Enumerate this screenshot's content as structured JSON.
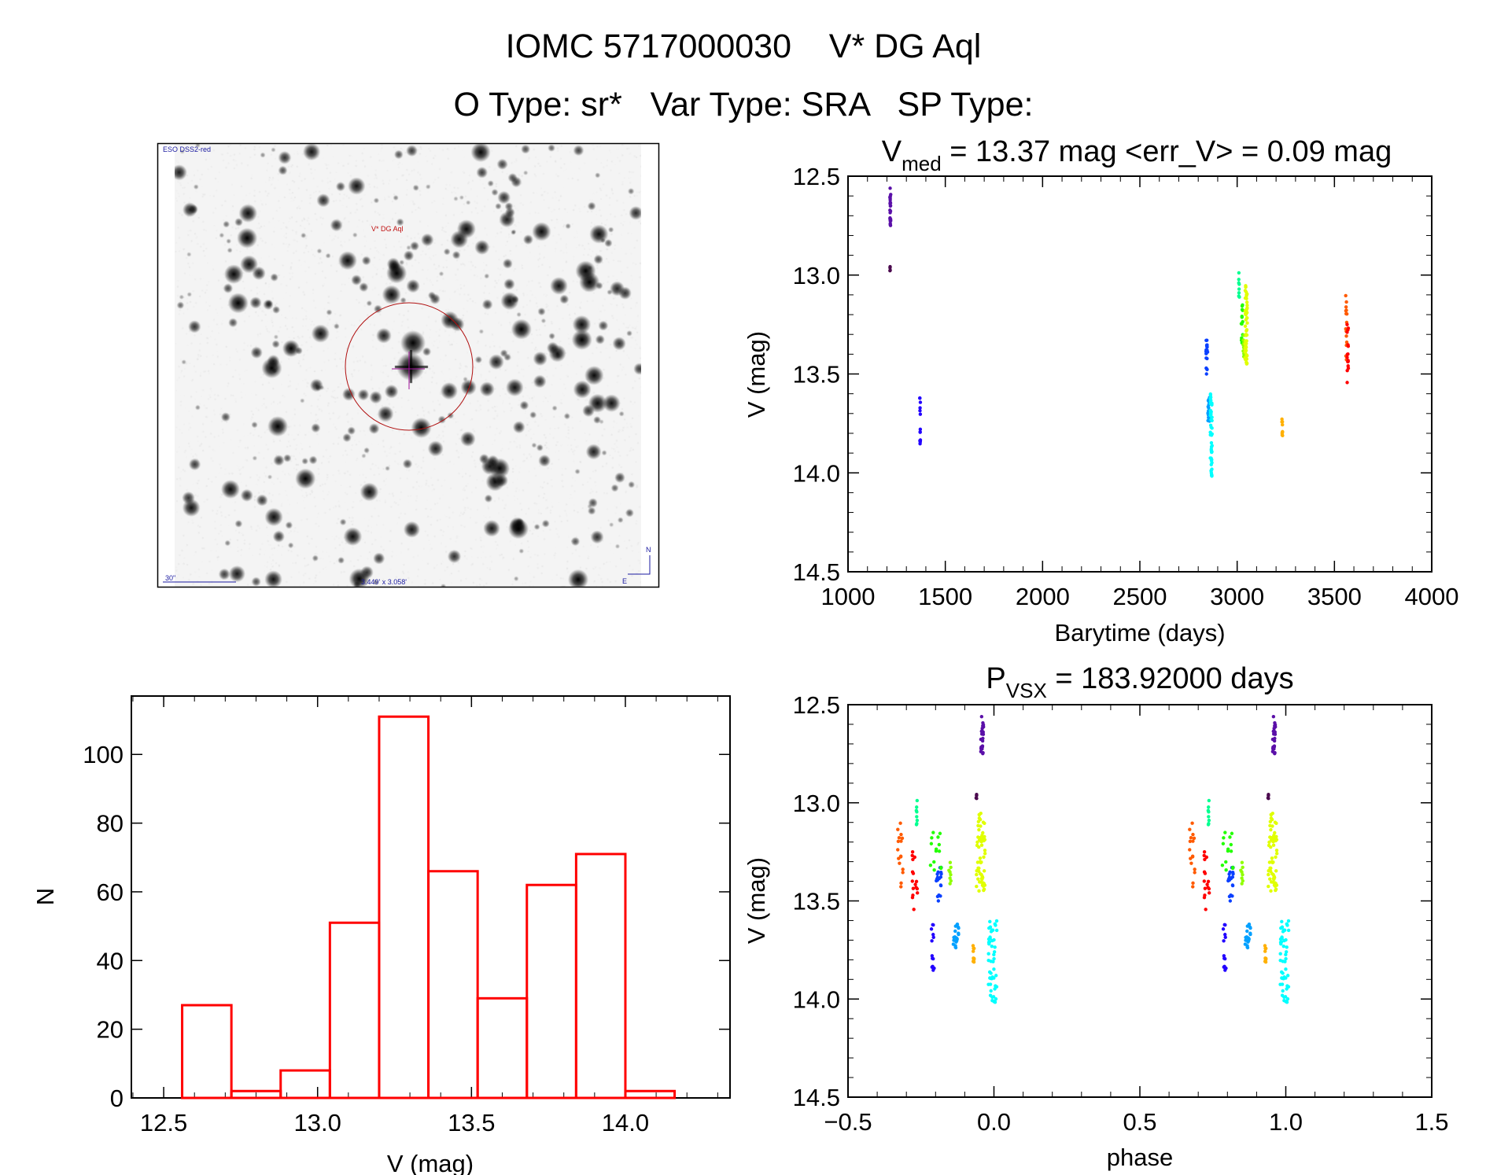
{
  "header": {
    "title_line1": "IOMC 5717000030    V* DG Aql",
    "title_line2": "O Type: sr*   Var Type: SRA   SP Type:"
  },
  "sky_image": {
    "survey_label": "ESO DSS2-red",
    "target_label": "V* DG Aql",
    "scale_label": "30\"",
    "fov_label": "3.449' x 3.058'",
    "north_label": "N",
    "east_label": "E"
  },
  "chart_data": [
    {
      "id": "lightcurve",
      "type": "scatter",
      "title_main": "V",
      "title_sub": "med",
      "title_rest": " = 13.37 mag <err_V> = 0.09 mag",
      "xlabel": "Barytime (days)",
      "ylabel": "V (mag)",
      "xlim": [
        1000,
        4000
      ],
      "ylim": [
        14.5,
        12.5
      ],
      "xticks": [
        "1000",
        "1500",
        "2000",
        "2500",
        "3000",
        "3500",
        "4000"
      ],
      "yticks": [
        "12.5",
        "13.0",
        "13.5",
        "14.0",
        "14.5"
      ],
      "clusters": [
        {
          "t": [
            1215,
            1220
          ],
          "phase": [
            -0.045,
            -0.035
          ],
          "mag": [
            12.56,
            12.75
          ],
          "n": 25,
          "color": "#5a0fa8"
        },
        {
          "t": [
            1215,
            1218
          ],
          "phase": [
            -0.061,
            -0.058
          ],
          "mag": [
            12.93,
            12.98
          ],
          "n": 4,
          "color": "#4b0a4e"
        },
        {
          "t": [
            1368,
            1372
          ],
          "phase": [
            -0.215,
            -0.205
          ],
          "mag": [
            13.62,
            13.89
          ],
          "n": 14,
          "color": "#2200ff"
        },
        {
          "t": [
            2840,
            2848
          ],
          "phase": [
            -0.2,
            -0.18
          ],
          "mag": [
            13.3,
            13.55
          ],
          "n": 18,
          "color": "#0a40ff"
        },
        {
          "t": [
            2850,
            2860
          ],
          "phase": [
            -0.14,
            -0.12
          ],
          "mag": [
            13.57,
            13.74
          ],
          "n": 20,
          "color": "#00a0ff"
        },
        {
          "t": [
            2862,
            2872
          ],
          "phase": [
            -0.02,
            0.01
          ],
          "mag": [
            13.6,
            14.02
          ],
          "n": 50,
          "color": "#00ffff"
        },
        {
          "t": [
            3008,
            3012
          ],
          "phase": [
            -0.266,
            -0.263
          ],
          "mag": [
            12.98,
            13.12
          ],
          "n": 8,
          "color": "#00ff90"
        },
        {
          "t": [
            3020,
            3030
          ],
          "phase": [
            -0.22,
            -0.18
          ],
          "mag": [
            13.15,
            13.35
          ],
          "n": 14,
          "color": "#22ff00"
        },
        {
          "t": [
            3030,
            3035
          ],
          "phase": [
            -0.155,
            -0.145
          ],
          "mag": [
            13.3,
            13.44
          ],
          "n": 8,
          "color": "#90ff00"
        },
        {
          "t": [
            3040,
            3052
          ],
          "phase": [
            -0.06,
            -0.03
          ],
          "mag": [
            13.05,
            13.45
          ],
          "n": 60,
          "color": "#e0ff00"
        },
        {
          "t": [
            3230,
            3234
          ],
          "phase": [
            -0.072,
            -0.068
          ],
          "mag": [
            13.72,
            13.82
          ],
          "n": 10,
          "color": "#ffb000"
        },
        {
          "t": [
            3558,
            3565
          ],
          "phase": [
            -0.33,
            -0.31
          ],
          "mag": [
            13.1,
            13.45
          ],
          "n": 16,
          "color": "#ff5a00"
        },
        {
          "t": [
            3565,
            3572
          ],
          "phase": [
            -0.28,
            -0.26
          ],
          "mag": [
            13.25,
            13.57
          ],
          "n": 16,
          "color": "#ff0000"
        }
      ]
    },
    {
      "id": "histogram",
      "type": "bar",
      "xlabel": "V (mag)",
      "ylabel": "N",
      "xlim": [
        12.395,
        14.34
      ],
      "ylim": [
        0,
        117
      ],
      "xticks": [
        "12.5",
        "13.0",
        "13.5",
        "14.0"
      ],
      "yticks": [
        "0",
        "20",
        "40",
        "60",
        "80",
        "100"
      ],
      "bin_start": 12.56,
      "bin_width": 0.16,
      "values": [
        27,
        2,
        8,
        51,
        111,
        66,
        29,
        62,
        71,
        2
      ],
      "color": "#ff0000"
    },
    {
      "id": "phased",
      "type": "scatter",
      "title_main": "P",
      "title_sub": "VSX",
      "title_rest": " = 183.92000 days",
      "xlabel": "phase",
      "ylabel": "V (mag)",
      "xlim": [
        -0.5,
        1.5
      ],
      "ylim": [
        14.5,
        12.5
      ],
      "xticks": [
        "−0.5",
        "0.0",
        "0.5",
        "1.0",
        "1.5"
      ],
      "yticks": [
        "12.5",
        "13.0",
        "13.5",
        "14.0",
        "14.5"
      ],
      "source": "lightcurve clusters, plotted at phase and phase+1"
    }
  ]
}
